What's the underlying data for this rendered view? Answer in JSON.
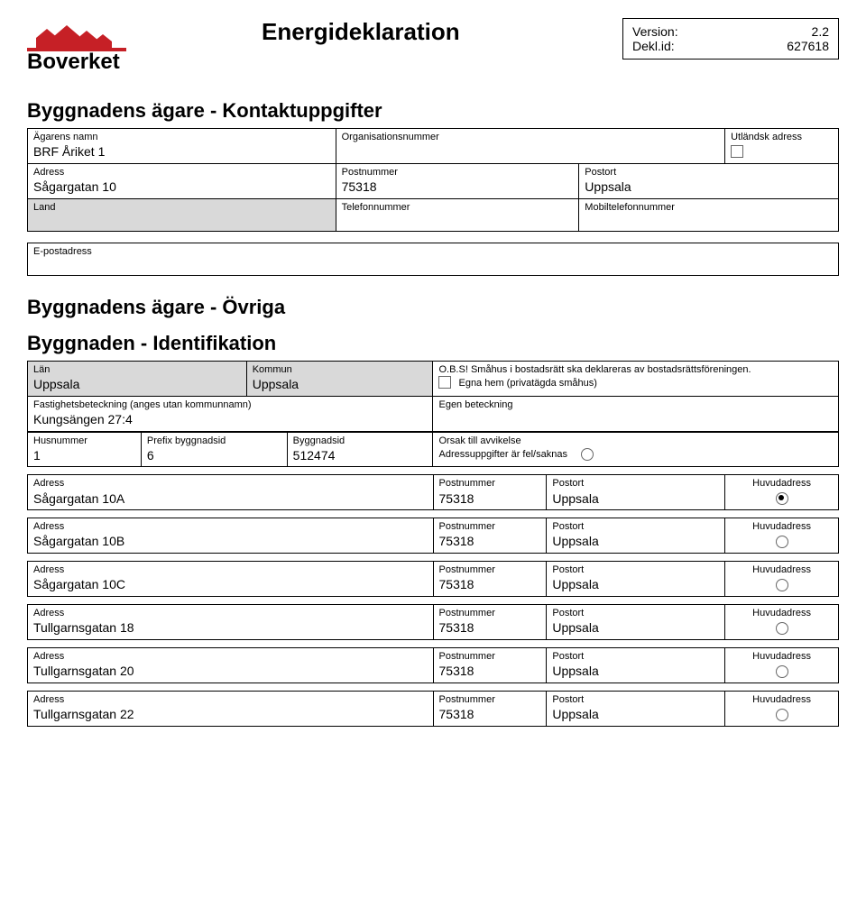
{
  "colors": {
    "logo_red": "#c62026",
    "shade": "#d9d9d9",
    "border": "#000000",
    "text": "#000000",
    "bg": "#ffffff"
  },
  "header": {
    "title": "Energideklaration",
    "meta": {
      "version_label": "Version:",
      "version_value": "2.2",
      "dekl_label": "Dekl.id:",
      "dekl_value": "627618"
    },
    "logo_text": "Boverket"
  },
  "section1": {
    "title": "Byggnadens ägare - Kontaktuppgifter",
    "owner_name_label": "Ägarens namn",
    "owner_name": "BRF Åriket 1",
    "org_label": "Organisationsnummer",
    "org": "",
    "foreign_label": "Utländsk adress",
    "addr_label": "Adress",
    "addr": "Sågargatan 10",
    "post_label": "Postnummer",
    "post": "75318",
    "city_label": "Postort",
    "city": "Uppsala",
    "land_label": "Land",
    "land": "",
    "tel_label": "Telefonnummer",
    "tel": "",
    "mobil_label": "Mobiltelefonnummer",
    "mobil": "",
    "email_label": "E-postadress",
    "email": ""
  },
  "section2": {
    "title": "Byggnadens ägare - Övriga"
  },
  "section3": {
    "title": "Byggnaden - Identifikation",
    "lan_label": "Län",
    "lan": "Uppsala",
    "kommun_label": "Kommun",
    "kommun": "Uppsala",
    "obs_text": "O.B.S! Småhus i bostadsrätt ska deklareras av bostadsrättsföreningen.",
    "egna_hem_label": "Egna hem (privatägda småhus)",
    "fast_label": "Fastighetsbeteckning (anges utan kommunnamn)",
    "fast": "Kungsängen 27:4",
    "egen_label": "Egen beteckning",
    "egen": "",
    "hus_label": "Husnummer",
    "hus": "1",
    "prefix_label": "Prefix byggnadsid",
    "prefix": "6",
    "bygg_label": "Byggnadsid",
    "bygg": "512474",
    "orsak_label": "Orsak till avvikelse",
    "orsak_text": "Adressuppgifter är fel/saknas",
    "cols": {
      "adress": "Adress",
      "post": "Postnummer",
      "city": "Postort",
      "huvud": "Huvudadress"
    },
    "addresses": [
      {
        "adress": "Sågargatan 10A",
        "post": "75318",
        "city": "Uppsala",
        "selected": true
      },
      {
        "adress": "Sågargatan 10B",
        "post": "75318",
        "city": "Uppsala",
        "selected": false
      },
      {
        "adress": "Sågargatan 10C",
        "post": "75318",
        "city": "Uppsala",
        "selected": false
      },
      {
        "adress": "Tullgarnsgatan 18",
        "post": "75318",
        "city": "Uppsala",
        "selected": false
      },
      {
        "adress": "Tullgarnsgatan 20",
        "post": "75318",
        "city": "Uppsala",
        "selected": false
      },
      {
        "adress": "Tullgarnsgatan 22",
        "post": "75318",
        "city": "Uppsala",
        "selected": false
      }
    ]
  }
}
